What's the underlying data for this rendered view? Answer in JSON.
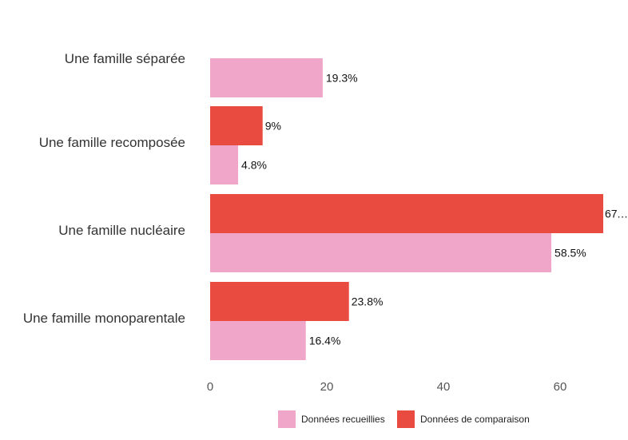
{
  "chart_data": {
    "type": "bar",
    "orientation": "horizontal",
    "categories": [
      "Une famille séparée",
      "Une famille recomposée",
      "Une famille nucléaire",
      "Une famille monoparentale"
    ],
    "series": [
      {
        "name": "Données recueillies",
        "color": "#f0a6c9",
        "values": [
          19.3,
          4.8,
          58.5,
          16.4
        ],
        "labels": [
          "19.3%",
          "4.8%",
          "58.5%",
          "16.4%"
        ]
      },
      {
        "name": "Données de comparaison",
        "color": "#ea4b40",
        "values": [
          null,
          9,
          67.4,
          23.8
        ],
        "labels": [
          "",
          "9%",
          "67.…",
          "23.8%"
        ]
      }
    ],
    "xlim": [
      0,
      70
    ],
    "xticks": [
      "0",
      "20",
      "40",
      "60"
    ],
    "xtick_values": [
      0,
      20,
      40,
      60
    ],
    "grid": false,
    "legend_position": "bottom"
  }
}
